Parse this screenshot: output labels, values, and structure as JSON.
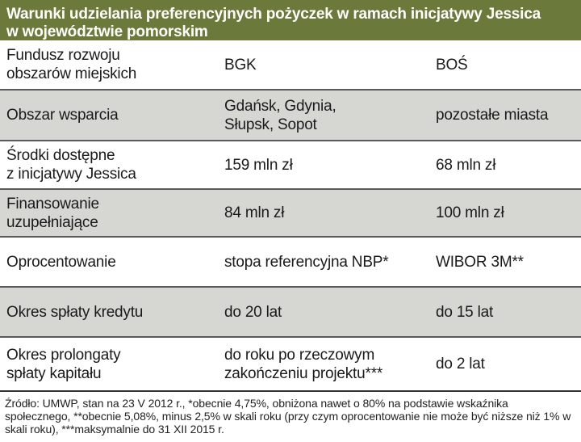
{
  "header": {
    "title_line1": "Warunki udzielania preferencyjnych pożyczek w ramach inicjatywy Jessica",
    "title_line2": "w województwie pomorskim"
  },
  "rows": [
    {
      "label": "Fundusz rozwoju\nobszarów miejskich",
      "col1": "BGK",
      "col2": "BOŚ"
    },
    {
      "label": "Obszar wsparcia",
      "col1": "Gdańsk, Gdynia,\nSłupsk, Sopot",
      "col2": "pozostałe miasta"
    },
    {
      "label": "Środki dostępne\nz inicjatywy Jessica",
      "col1": "159 mln zł",
      "col2": "68 mln zł"
    },
    {
      "label": "Finansowanie\nuzupełniające",
      "col1": "84 mln zł",
      "col2": "100 mln zł"
    },
    {
      "label": "Oprocentowanie",
      "col1": "stopa referencyjna NBP*",
      "col2": "WIBOR 3M**"
    },
    {
      "label": "Okres spłaty kredytu",
      "col1": "do 20 lat",
      "col2": "do 15 lat"
    },
    {
      "label": "Okres prolongaty\nspłaty kapitału",
      "col1": "do roku po rzeczowym\nzakończeniu projektu***",
      "col2": "do 2 lat"
    }
  ],
  "footnote": "Źródło: UMWP, stan na 23 V 2012 r., *obecnie 4,75%, obniżona nawet o 80% na podstawie wskaźnika społecznego, **obecnie 5,08%, minus 2,5% w skali roku (przy czym oprocentowanie nie może być niższe niż 1% w skali roku), ***maksymalnie do 31 XII 2015 r.",
  "colors": {
    "header_bg": "#6b7a3a",
    "stripe_bg": "#d6d6d2"
  }
}
